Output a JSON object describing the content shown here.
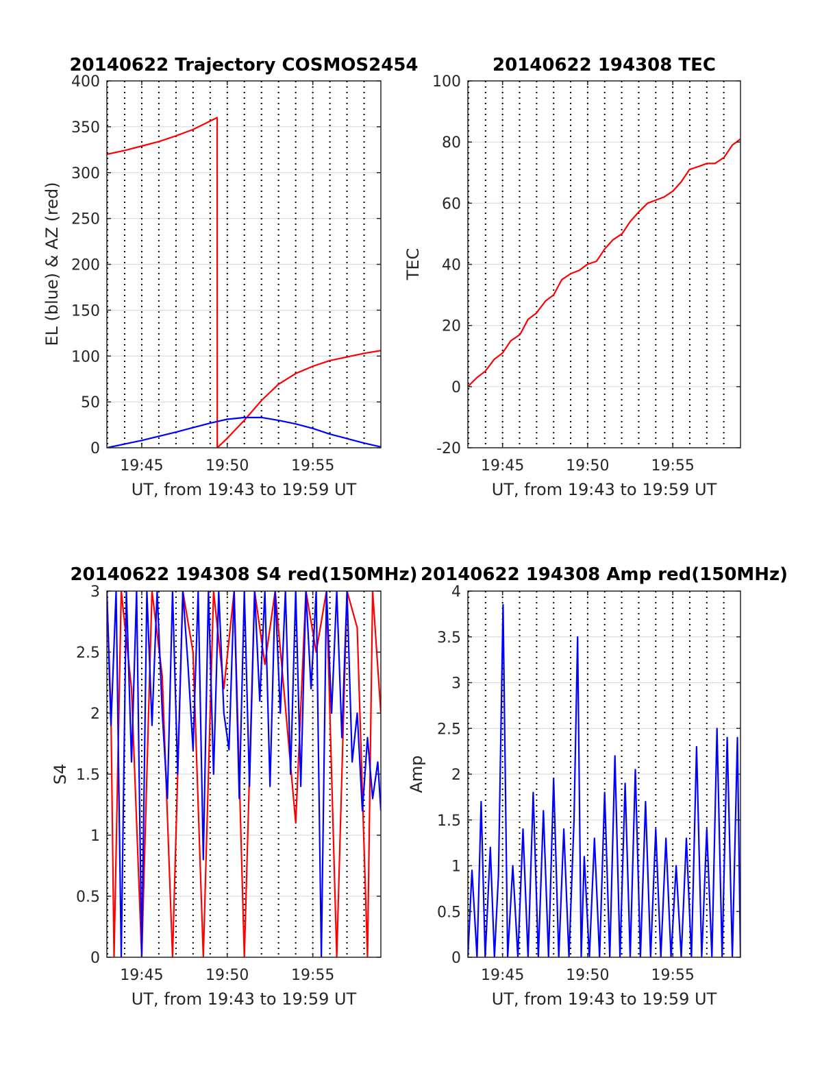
{
  "chart_data": [
    {
      "id": "trajectory",
      "type": "line",
      "title": "20140622 Trajectory COSMOS2454",
      "xlabel": "UT, from 19:43 to 19:59 UT",
      "ylabel": "EL (blue) & AZ (red)",
      "xlim": [
        19.716,
        19.983
      ],
      "ylim": [
        0,
        400
      ],
      "yticks": [
        0,
        50,
        100,
        150,
        200,
        250,
        300,
        350,
        400
      ],
      "xticks": [
        {
          "v": 19.75,
          "label": "19:45"
        },
        {
          "v": 19.8333,
          "label": "19:50"
        },
        {
          "v": 19.9167,
          "label": "19:55"
        }
      ],
      "grid": true,
      "series": [
        {
          "color": "#ff0000",
          "x": [
            19.716,
            19.733,
            19.75,
            19.767,
            19.783,
            19.8,
            19.8235,
            19.8236,
            19.833,
            19.85,
            19.867,
            19.883,
            19.9,
            19.917,
            19.933,
            19.95,
            19.967,
            19.983
          ],
          "values": [
            320,
            324,
            329,
            334,
            340,
            347,
            360,
            0,
            10,
            30,
            52,
            69,
            81,
            89,
            95,
            99,
            103,
            106
          ]
        },
        {
          "color": "#0000ff",
          "x": [
            19.716,
            19.75,
            19.783,
            19.8,
            19.817,
            19.833,
            19.85,
            19.867,
            19.883,
            19.9,
            19.917,
            19.933,
            19.95,
            19.967,
            19.983
          ],
          "values": [
            0,
            8,
            17,
            22,
            27,
            31,
            33,
            33,
            30,
            26,
            21,
            15,
            10,
            5,
            1
          ]
        }
      ]
    },
    {
      "id": "tec",
      "type": "line",
      "title": "20140622 194308 TEC",
      "xlabel": "UT, from 19:43 to 19:59 UT",
      "ylabel": "TEC",
      "xlim": [
        19.716,
        19.983
      ],
      "ylim": [
        -20,
        100
      ],
      "yticks": [
        -20,
        0,
        20,
        40,
        60,
        80,
        100
      ],
      "xticks": [
        {
          "v": 19.75,
          "label": "19:45"
        },
        {
          "v": 19.8333,
          "label": "19:50"
        },
        {
          "v": 19.9167,
          "label": "19:55"
        }
      ],
      "grid": true,
      "series": [
        {
          "color": "#ff0000",
          "x": [
            19.716,
            19.725,
            19.733,
            19.742,
            19.75,
            19.758,
            19.767,
            19.775,
            19.783,
            19.792,
            19.8,
            19.808,
            19.817,
            19.825,
            19.833,
            19.842,
            19.85,
            19.858,
            19.867,
            19.875,
            19.883,
            19.892,
            19.9,
            19.908,
            19.917,
            19.925,
            19.933,
            19.942,
            19.95,
            19.958,
            19.967,
            19.975,
            19.983
          ],
          "values": [
            0,
            3,
            5,
            9,
            11,
            15,
            17,
            22,
            24,
            28,
            30,
            35,
            37,
            38,
            40,
            41,
            45,
            48,
            50,
            54,
            57,
            60,
            61,
            62,
            64,
            67,
            71,
            72,
            73,
            73,
            75,
            79,
            81
          ]
        }
      ]
    },
    {
      "id": "s4",
      "type": "line",
      "title": "20140622 194308 S4 red(150MHz)",
      "xlabel": "UT, from 19:43 to 19:59 UT",
      "ylabel": "S4",
      "xlim": [
        19.716,
        19.983
      ],
      "ylim": [
        0,
        3
      ],
      "yticks": [
        0,
        0.5,
        1,
        1.5,
        2,
        2.5,
        3
      ],
      "xticks": [
        {
          "v": 19.75,
          "label": "19:45"
        },
        {
          "v": 19.8333,
          "label": "19:50"
        },
        {
          "v": 19.9167,
          "label": "19:55"
        }
      ],
      "grid": true,
      "series": [
        {
          "color": "#ff0000",
          "x": [
            19.716,
            19.72,
            19.723,
            19.73,
            19.74,
            19.75,
            19.76,
            19.77,
            19.78,
            19.79,
            19.8,
            19.81,
            19.82,
            19.83,
            19.84,
            19.85,
            19.86,
            19.87,
            19.88,
            19.9,
            19.91,
            19.92,
            19.93,
            19.94,
            19.95,
            19.96,
            19.97,
            19.975,
            19.983
          ],
          "values": [
            3,
            2.0,
            0,
            3,
            2.2,
            0,
            3,
            2.3,
            0,
            3,
            2.5,
            0,
            3,
            2.2,
            3,
            0,
            3,
            2.4,
            3,
            1.1,
            3,
            2.5,
            3,
            0,
            3,
            2.7,
            0,
            3,
            2.0
          ]
        },
        {
          "color": "#0000ff",
          "x": [
            19.716,
            19.72,
            19.725,
            19.73,
            19.735,
            19.74,
            19.745,
            19.75,
            19.755,
            19.76,
            19.765,
            19.77,
            19.775,
            19.78,
            19.785,
            19.79,
            19.795,
            19.8,
            19.805,
            19.81,
            19.815,
            19.82,
            19.825,
            19.83,
            19.835,
            19.84,
            19.845,
            19.85,
            19.855,
            19.86,
            19.865,
            19.87,
            19.875,
            19.88,
            19.885,
            19.89,
            19.895,
            19.9,
            19.905,
            19.91,
            19.915,
            19.92,
            19.925,
            19.93,
            19.935,
            19.94,
            19.945,
            19.95,
            19.955,
            19.96,
            19.965,
            19.97,
            19.975,
            19.98,
            19.983
          ],
          "values": [
            3,
            1.9,
            3,
            0,
            3,
            1.6,
            3,
            0,
            3,
            1.9,
            3,
            2.0,
            1.3,
            3,
            1.5,
            3,
            2.4,
            1.7,
            3,
            0.8,
            3,
            1.5,
            3,
            2.0,
            1.7,
            3,
            1.3,
            3,
            1.4,
            3,
            2.1,
            3,
            1.4,
            3,
            2.0,
            3,
            1.5,
            3,
            1.4,
            3,
            2.2,
            3,
            0,
            3,
            2.0,
            3,
            1.8,
            3,
            1.6,
            2.0,
            1.2,
            1.8,
            1.3,
            1.6,
            1.2
          ]
        }
      ]
    },
    {
      "id": "amp",
      "type": "line",
      "title": "20140622 194308 Amp red(150MHz)",
      "xlabel": "UT, from 19:43 to 19:59 UT",
      "ylabel": "Amp",
      "xlim": [
        19.716,
        19.983
      ],
      "ylim": [
        0,
        4
      ],
      "yticks": [
        0,
        0.5,
        1,
        1.5,
        2,
        2.5,
        3,
        3.5,
        4
      ],
      "xticks": [
        {
          "v": 19.75,
          "label": "19:45"
        },
        {
          "v": 19.8333,
          "label": "19:50"
        },
        {
          "v": 19.9167,
          "label": "19:55"
        }
      ],
      "grid": true,
      "series": [
        {
          "color": "#0000ff",
          "x": [
            19.716,
            19.72,
            19.725,
            19.729,
            19.733,
            19.738,
            19.742,
            19.746,
            19.7505,
            19.755,
            19.76,
            19.765,
            19.77,
            19.775,
            19.78,
            19.785,
            19.79,
            19.795,
            19.8,
            19.805,
            19.81,
            19.815,
            19.82,
            19.8235,
            19.827,
            19.83,
            19.835,
            19.84,
            19.845,
            19.85,
            19.855,
            19.86,
            19.865,
            19.87,
            19.875,
            19.88,
            19.885,
            19.89,
            19.895,
            19.9,
            19.905,
            19.91,
            19.915,
            19.92,
            19.925,
            19.93,
            19.935,
            19.94,
            19.945,
            19.95,
            19.955,
            19.96,
            19.965,
            19.97,
            19.975,
            19.98,
            19.983
          ],
          "values": [
            0,
            0.95,
            0,
            1.7,
            0,
            1.2,
            0,
            0.9,
            3.85,
            0,
            1.0,
            0,
            1.4,
            0,
            1.8,
            0,
            1.6,
            0,
            1.95,
            0,
            1.4,
            0,
            1.5,
            3.5,
            0,
            1.1,
            0,
            1.3,
            0,
            1.8,
            0,
            2.2,
            0,
            1.9,
            0,
            2.05,
            0,
            1.7,
            0,
            1.4,
            0,
            1.3,
            0,
            1.0,
            0,
            1.3,
            0,
            2.3,
            0,
            1.4,
            0,
            2.5,
            0,
            2.4,
            0,
            2.4,
            0
          ]
        }
      ]
    }
  ]
}
